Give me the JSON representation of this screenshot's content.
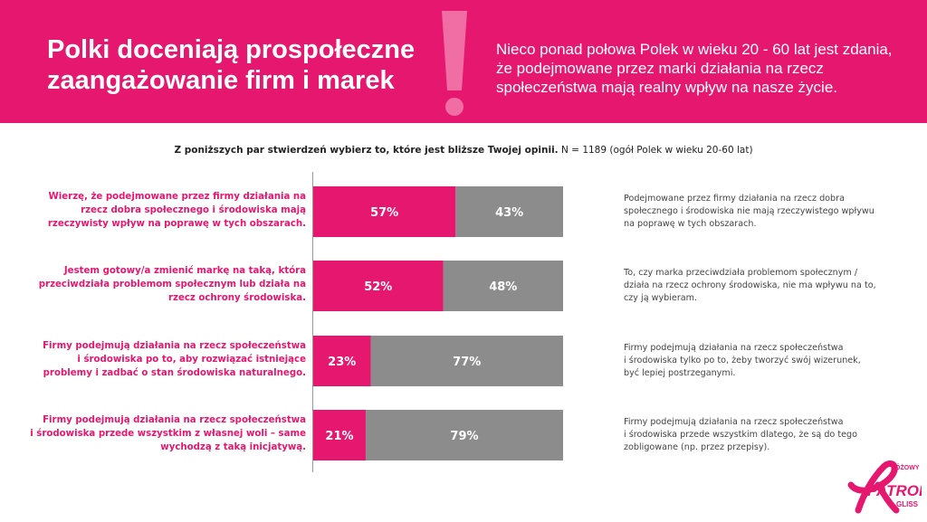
{
  "header": {
    "title_lines": [
      "Polki doceniają prospołeczne",
      "zaangażowanie firm i marek"
    ],
    "subtitle_lines": [
      "Nieco ponad połowa Polek w wieku 20 - 60 lat jest zdania,",
      "że podejmowane przez marki działania na rzecz",
      "społeczeństwa mają realny wpływ na nasze życie."
    ],
    "accent_color": "#e5176e"
  },
  "question": {
    "bold": "Z poniższych par stwierdzeń wybierz to, które jest bliższe Twojej opinii.",
    "note": " N = 1189 (ogół Polek w wieku 20-60 lat)"
  },
  "chart_data": {
    "type": "bar",
    "orientation": "horizontal-stacked-100",
    "colors": {
      "agree": "#e5176e",
      "other": "#8c8c8c"
    },
    "rows": [
      {
        "left_lines": [
          "Wierzę, że podejmowane przez firmy działania na",
          "rzecz dobra społecznego i środowiska mają",
          "rzeczywisty wpływ na poprawę w tych obszarach."
        ],
        "right_lines": [
          "Podejmowane przez firmy działania na rzecz dobra",
          "społecznego i środowiska nie mają rzeczywistego wpływu",
          "na poprawę w tych obszarach."
        ],
        "left_value": 57,
        "right_value": 43,
        "left_text": "57%",
        "right_text": "43%"
      },
      {
        "left_lines": [
          "Jestem gotowy/a zmienić markę na taką, która",
          "przeciwdziała problemom społecznym lub działa na",
          "rzecz ochrony środowiska."
        ],
        "right_lines": [
          "To, czy marka przeciwdziała problemom społecznym /",
          "działa na rzecz ochrony środowiska, nie ma wpływu na to,",
          "czy ją wybieram."
        ],
        "left_value": 52,
        "right_value": 48,
        "left_text": "52%",
        "right_text": "48%"
      },
      {
        "left_lines": [
          "Firmy podejmują działania na rzecz społeczeństwa",
          "i środowiska po to, aby rozwiązać istniejące",
          "problemy i zadbać o stan środowiska naturalnego."
        ],
        "right_lines": [
          "Firmy podejmują działania na rzecz społeczeństwa",
          "i środowiska tylko po to, żeby tworzyć swój wizerunek,",
          "być lepiej postrzeganymi."
        ],
        "left_value": 23,
        "right_value": 77,
        "left_text": "23%",
        "right_text": "77%"
      },
      {
        "left_lines": [
          "Firmy podejmują działania na rzecz społeczeństwa",
          "i środowiska przede wszystkim z własnej woli – same",
          "wychodzą z taką inicjatywą."
        ],
        "right_lines": [
          "Firmy podejmują działania na rzecz społeczeństwa",
          "i środowiska przede wszystkim dlatego, że są do tego",
          "zobligowane (np. przez przepisy)."
        ],
        "left_value": 21,
        "right_value": 79,
        "left_text": "21%",
        "right_text": "79%"
      }
    ]
  },
  "logo": {
    "small_text": "RÓŻOWY",
    "main_text": "PATROL",
    "sub_text": "GLISS",
    "icon": "pink-ribbon-icon"
  }
}
